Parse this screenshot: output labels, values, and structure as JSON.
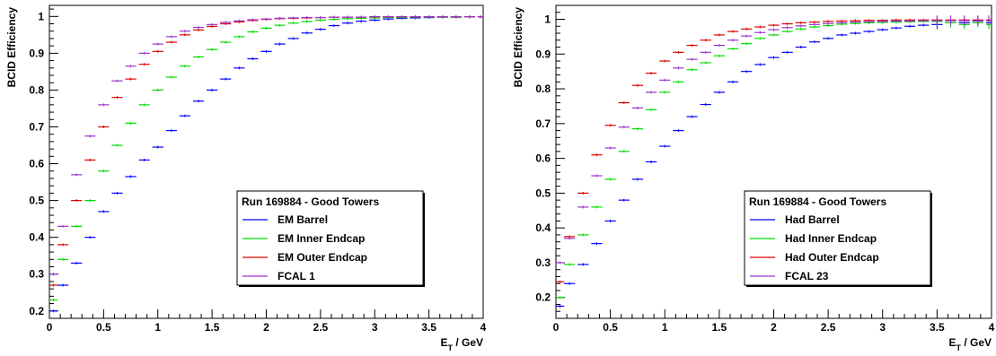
{
  "chart_data": [
    {
      "type": "scatter",
      "title": "",
      "xlabel": "E",
      "xlabel_sub": "T",
      "xlabel_suffix": " / GeV",
      "ylabel": "BCID Efficiency",
      "xlim": [
        0,
        4
      ],
      "ylim": [
        0.18,
        1.03
      ],
      "x_ticks": [
        "0",
        "0.5",
        "1",
        "1.5",
        "2",
        "2.5",
        "3",
        "3.5",
        "4"
      ],
      "x_tick_values": [
        0,
        0.5,
        1,
        1.5,
        2,
        2.5,
        3,
        3.5,
        4
      ],
      "y_ticks": [
        "0.2",
        "0.3",
        "0.4",
        "0.5",
        "0.6",
        "0.7",
        "0.8",
        "0.9",
        "1"
      ],
      "y_tick_values": [
        0.2,
        0.3,
        0.4,
        0.5,
        0.6,
        0.7,
        0.8,
        0.9,
        1.0
      ],
      "grid": false,
      "legend_position": "lower-right",
      "legend_title": "Run 169884 - Good Towers",
      "x": [
        0.025,
        0.125,
        0.25,
        0.375,
        0.5,
        0.625,
        0.75,
        0.875,
        1.0,
        1.125,
        1.25,
        1.375,
        1.5,
        1.625,
        1.75,
        1.875,
        2.0,
        2.125,
        2.25,
        2.375,
        2.5,
        2.625,
        2.75,
        2.875,
        3.0,
        3.125,
        3.25,
        3.375,
        3.5,
        3.625,
        3.75,
        3.875,
        4.0
      ],
      "series": [
        {
          "name": "EM Barrel",
          "color": "#0000ff",
          "values": [
            0.2,
            0.27,
            0.33,
            0.4,
            0.47,
            0.52,
            0.565,
            0.61,
            0.645,
            0.69,
            0.73,
            0.77,
            0.8,
            0.83,
            0.86,
            0.885,
            0.905,
            0.925,
            0.94,
            0.955,
            0.965,
            0.975,
            0.982,
            0.987,
            0.99,
            0.993,
            0.995,
            0.996,
            0.997,
            0.998,
            0.998,
            0.999,
            0.999
          ]
        },
        {
          "name": "EM Inner Endcap",
          "color": "#00dd00",
          "values": [
            0.23,
            0.34,
            0.43,
            0.5,
            0.58,
            0.65,
            0.71,
            0.76,
            0.8,
            0.835,
            0.865,
            0.89,
            0.91,
            0.93,
            0.945,
            0.958,
            0.968,
            0.976,
            0.982,
            0.986,
            0.99,
            0.992,
            0.994,
            0.995,
            0.996,
            0.997,
            0.997,
            0.998,
            0.998,
            0.998,
            0.998,
            0.999,
            0.999
          ]
        },
        {
          "name": "EM Outer Endcap",
          "color": "#dd0000",
          "values": [
            0.27,
            0.38,
            0.5,
            0.61,
            0.7,
            0.78,
            0.83,
            0.87,
            0.905,
            0.93,
            0.95,
            0.963,
            0.973,
            0.98,
            0.985,
            0.989,
            0.992,
            0.994,
            0.995,
            0.996,
            0.997,
            0.998,
            0.998,
            0.998,
            0.999,
            0.999,
            0.999,
            0.999,
            0.999,
            0.999,
            0.999,
            0.999,
            0.999
          ]
        },
        {
          "name": "FCAL 1",
          "color": "#9933cc",
          "values": [
            0.3,
            0.43,
            0.57,
            0.675,
            0.76,
            0.825,
            0.865,
            0.9,
            0.925,
            0.945,
            0.96,
            0.97,
            0.978,
            0.984,
            0.988,
            0.991,
            0.993,
            0.995,
            0.996,
            0.997,
            0.997,
            0.998,
            0.998,
            0.998,
            0.999,
            0.999,
            0.999,
            0.999,
            0.999,
            0.999,
            0.999,
            0.999,
            0.999
          ]
        }
      ]
    },
    {
      "type": "scatter",
      "title": "",
      "xlabel": "E",
      "xlabel_sub": "T",
      "xlabel_suffix": " / GeV",
      "ylabel": "BCID Efficiency",
      "xlim": [
        0,
        4
      ],
      "ylim": [
        0.14,
        1.04
      ],
      "x_ticks": [
        "0",
        "0.5",
        "1",
        "1.5",
        "2",
        "2.5",
        "3",
        "3.5",
        "4"
      ],
      "x_tick_values": [
        0,
        0.5,
        1,
        1.5,
        2,
        2.5,
        3,
        3.5,
        4
      ],
      "y_ticks": [
        "0.2",
        "0.3",
        "0.4",
        "0.5",
        "0.6",
        "0.7",
        "0.8",
        "0.9",
        "1"
      ],
      "y_tick_values": [
        0.2,
        0.3,
        0.4,
        0.5,
        0.6,
        0.7,
        0.8,
        0.9,
        1.0
      ],
      "grid": false,
      "legend_position": "lower-right",
      "legend_title": "Run 169884 - Good Towers",
      "x": [
        0.025,
        0.125,
        0.25,
        0.375,
        0.5,
        0.625,
        0.75,
        0.875,
        1.0,
        1.125,
        1.25,
        1.375,
        1.5,
        1.625,
        1.75,
        1.875,
        2.0,
        2.125,
        2.25,
        2.375,
        2.5,
        2.625,
        2.75,
        2.875,
        3.0,
        3.125,
        3.25,
        3.375,
        3.5,
        3.625,
        3.75,
        3.875,
        4.0
      ],
      "series": [
        {
          "name": "Had Barrel",
          "color": "#0000ff",
          "values": [
            0.175,
            0.24,
            0.295,
            0.355,
            0.42,
            0.48,
            0.54,
            0.59,
            0.635,
            0.68,
            0.72,
            0.755,
            0.79,
            0.82,
            0.85,
            0.87,
            0.89,
            0.905,
            0.92,
            0.935,
            0.945,
            0.955,
            0.96,
            0.965,
            0.97,
            0.975,
            0.98,
            0.983,
            0.985,
            0.99,
            0.99,
            0.995,
            0.99
          ]
        },
        {
          "name": "Had Inner Endcap",
          "color": "#00dd00",
          "values": [
            0.2,
            0.295,
            0.38,
            0.46,
            0.54,
            0.62,
            0.685,
            0.74,
            0.79,
            0.82,
            0.855,
            0.875,
            0.895,
            0.915,
            0.93,
            0.945,
            0.955,
            0.965,
            0.972,
            0.978,
            0.982,
            0.986,
            0.988,
            0.99,
            0.991,
            0.992,
            0.993,
            0.994,
            0.994,
            0.99,
            0.985,
            0.99,
            0.985
          ]
        },
        {
          "name": "Had Outer Endcap",
          "color": "#dd0000",
          "values": [
            0.245,
            0.375,
            0.5,
            0.61,
            0.695,
            0.76,
            0.81,
            0.845,
            0.88,
            0.905,
            0.925,
            0.94,
            0.955,
            0.965,
            0.972,
            0.978,
            0.983,
            0.987,
            0.99,
            0.992,
            0.994,
            0.995,
            0.996,
            0.997,
            0.997,
            0.998,
            0.998,
            0.998,
            0.998,
            0.998,
            0.998,
            0.998,
            0.998
          ]
        },
        {
          "name": "FCAL 23",
          "color": "#9933cc",
          "values": [
            0.3,
            0.37,
            0.46,
            0.55,
            0.63,
            0.69,
            0.745,
            0.79,
            0.825,
            0.86,
            0.885,
            0.905,
            0.925,
            0.94,
            0.952,
            0.962,
            0.97,
            0.976,
            0.981,
            0.985,
            0.988,
            0.99,
            0.992,
            0.993,
            0.994,
            0.995,
            0.995,
            0.996,
            0.996,
            0.996,
            0.996,
            0.996,
            0.996
          ]
        }
      ]
    }
  ]
}
